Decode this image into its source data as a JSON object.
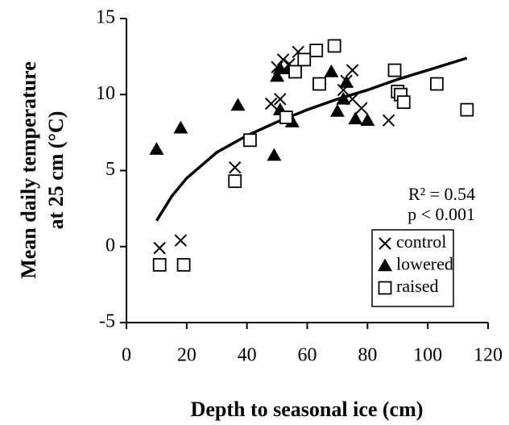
{
  "chart_data": {
    "type": "scatter",
    "x_label": "Depth to seasonal ice (cm)",
    "y_label": [
      "Mean daily temperature",
      "at 25 cm (°C)"
    ],
    "xlim": [
      0,
      120
    ],
    "xticks": [
      0,
      20,
      40,
      60,
      80,
      100,
      120
    ],
    "ylim": [
      -5,
      15
    ],
    "yticks": [
      -5,
      0,
      5,
      10,
      15
    ],
    "annotations": [
      "R² = 0.54",
      "p < 0.001"
    ],
    "legend": "lower right",
    "series": [
      {
        "name": "control",
        "marker": "x",
        "color": "#000000",
        "x": [
          11,
          18,
          36,
          48,
          51,
          50,
          52,
          54,
          57,
          73,
          75,
          75,
          78,
          87,
          72
        ],
        "values": [
          -0.1,
          0.4,
          5.2,
          9.4,
          9.7,
          11.8,
          12.3,
          12.0,
          12.8,
          10.9,
          11.6,
          9.7,
          9.1,
          8.3,
          10.3
        ]
      },
      {
        "name": "lowered",
        "marker": "triangle",
        "color": "#000000",
        "x": [
          10,
          18,
          37,
          49,
          50,
          51,
          51,
          54,
          55,
          68,
          70,
          72,
          73,
          76,
          80
        ],
        "values": [
          6.4,
          7.8,
          9.3,
          6.0,
          11.2,
          11.7,
          9.0,
          11.7,
          8.2,
          11.5,
          8.9,
          9.7,
          10.8,
          8.4,
          8.3
        ]
      },
      {
        "name": "raised",
        "marker": "square",
        "color": "#000000",
        "x": [
          11,
          19,
          36,
          41,
          53,
          56,
          59,
          63,
          64,
          69,
          89,
          90,
          91,
          92,
          103,
          113
        ],
        "values": [
          -1.2,
          -1.2,
          4.3,
          7.0,
          8.5,
          11.5,
          12.3,
          12.9,
          10.7,
          13.2,
          11.6,
          10.2,
          10.0,
          9.5,
          10.7,
          9.0
        ]
      }
    ],
    "fit": {
      "color": "#000000",
      "x": [
        10,
        15,
        20,
        30,
        40,
        50,
        60,
        70,
        80,
        90,
        100,
        113
      ],
      "values": [
        1.7,
        3.3,
        4.5,
        6.2,
        7.3,
        8.2,
        9.0,
        9.7,
        10.3,
        11.0,
        11.6,
        12.4
      ]
    }
  }
}
